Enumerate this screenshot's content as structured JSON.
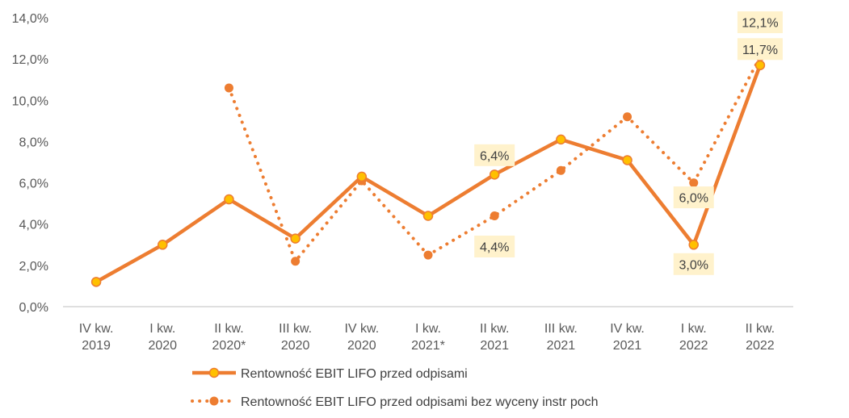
{
  "chart_data": {
    "type": "line",
    "title": "",
    "xlabel": "",
    "ylabel": "",
    "ylim": [
      0,
      14
    ],
    "y_ticks": [
      "0,0%",
      "2,0%",
      "4,0%",
      "6,0%",
      "8,0%",
      "10,0%",
      "12,0%",
      "14,0%"
    ],
    "categories": [
      [
        "IV kw.",
        "2019"
      ],
      [
        "I kw.",
        "2020"
      ],
      [
        "II kw.",
        "2020*"
      ],
      [
        "III kw.",
        "2020"
      ],
      [
        "IV kw.",
        "2020"
      ],
      [
        "I kw.",
        "2021*"
      ],
      [
        "II kw.",
        "2021"
      ],
      [
        "III kw.",
        "2021"
      ],
      [
        "IV kw.",
        "2021"
      ],
      [
        "I kw.",
        "2022"
      ],
      [
        "II kw.",
        "2022"
      ]
    ],
    "legend_position": "bottom",
    "grid": false,
    "series": [
      {
        "name": "Rentowność EBIT LIFO przed odpisami",
        "style": "solid",
        "line_color": "#ED7D31",
        "marker_fill": "#FFC000",
        "values": [
          1.2,
          3.0,
          5.2,
          3.3,
          6.3,
          4.4,
          6.4,
          8.1,
          7.1,
          3.0,
          11.7
        ],
        "data_labels": [
          {
            "index": 6,
            "text": "6,4%"
          },
          {
            "index": 9,
            "text": "3,0%"
          },
          {
            "index": 10,
            "text": "11,7%"
          }
        ]
      },
      {
        "name": "Rentowność EBIT LIFO przed odpisami bez wyceny instr poch",
        "style": "dotted",
        "line_color": "#ED7D31",
        "marker_fill": "#ED7D31",
        "values": [
          null,
          null,
          10.6,
          2.2,
          6.1,
          2.5,
          4.4,
          6.6,
          9.2,
          6.0,
          12.1
        ],
        "data_labels": [
          {
            "index": 6,
            "text": "4,4%"
          },
          {
            "index": 9,
            "text": "6,0%"
          },
          {
            "index": 10,
            "text": "12,1%"
          }
        ]
      }
    ]
  }
}
